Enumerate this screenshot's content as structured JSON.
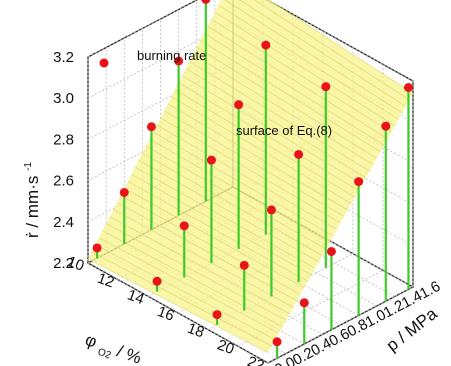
{
  "chart_data": {
    "type": "scatter",
    "subtype": "3d-scatter-with-fitted-surface",
    "title": "",
    "legend": {
      "label": "burning rate",
      "placement": "top-left",
      "marker_color": "#e8141a"
    },
    "annotation": "surface of Eq.(8)",
    "x_axis": {
      "symbol": "φ",
      "subscript": "O2",
      "unit": "%",
      "range": [
        10,
        22
      ],
      "ticks": [
        "10",
        "12",
        "14",
        "16",
        "18",
        "20",
        "22"
      ]
    },
    "y_axis": {
      "label": "p / MPa",
      "range": [
        0.0,
        1.6
      ],
      "ticks": [
        "0.0",
        "0.2",
        "0.4",
        "0.6",
        "0.8",
        "1.0",
        "1.2",
        "1.4",
        "1.6"
      ]
    },
    "z_axis": {
      "symbol": "ṙ",
      "unit": "mm·s",
      "unit_exponent": "-1",
      "range": [
        2.2,
        3.2
      ],
      "ticks": [
        "2.2",
        "2.4",
        "2.6",
        "2.8",
        "3.0",
        "3.2"
      ]
    },
    "points": [
      {
        "x": 10,
        "y": 0.1,
        "z": 2.25
      },
      {
        "x": 10,
        "y": 0.4,
        "z": 2.45
      },
      {
        "x": 10,
        "y": 0.7,
        "z": 2.7
      },
      {
        "x": 10,
        "y": 1.0,
        "z": 2.95
      },
      {
        "x": 10,
        "y": 1.3,
        "z": 3.18
      },
      {
        "x": 14,
        "y": 0.1,
        "z": 2.25
      },
      {
        "x": 14,
        "y": 0.4,
        "z": 2.45
      },
      {
        "x": 14,
        "y": 0.7,
        "z": 2.7
      },
      {
        "x": 14,
        "y": 1.0,
        "z": 2.9
      },
      {
        "x": 14,
        "y": 1.3,
        "z": 3.12
      },
      {
        "x": 18,
        "y": 0.1,
        "z": 2.25
      },
      {
        "x": 18,
        "y": 0.4,
        "z": 2.42
      },
      {
        "x": 18,
        "y": 0.7,
        "z": 2.62
      },
      {
        "x": 18,
        "y": 1.0,
        "z": 2.82
      },
      {
        "x": 18,
        "y": 1.3,
        "z": 3.08
      },
      {
        "x": 22,
        "y": 0.1,
        "z": 2.28
      },
      {
        "x": 22,
        "y": 0.4,
        "z": 2.4
      },
      {
        "x": 22,
        "y": 0.7,
        "z": 2.58
      },
      {
        "x": 22,
        "y": 1.0,
        "z": 2.85
      },
      {
        "x": 22,
        "y": 1.3,
        "z": 3.05
      },
      {
        "x": 22,
        "y": 1.55,
        "z": 3.18
      }
    ],
    "surface": {
      "z_at_corners": {
        "x10_y0": 2.22,
        "x22_y0": 2.25,
        "x10_y1.6": 3.22,
        "x22_y1.6": 3.14
      }
    },
    "colors": {
      "markers": "#e8141a",
      "stems": "#3ccc28",
      "surface": "#f7f18c",
      "surface_lines": "#d9d040",
      "grid": "#bbbbbb"
    }
  }
}
